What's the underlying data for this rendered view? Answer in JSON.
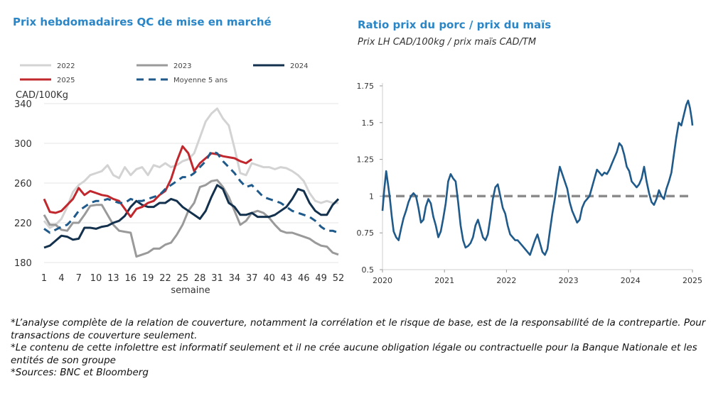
{
  "left_chart": {
    "title": "Prix hebdomadaires QC de mise en marché"
  },
  "right_chart": {
    "title": "Ratio prix du porc / prix du maïs",
    "subtitle": "Prix LH CAD/100kg / prix maïs CAD/TM"
  },
  "footnotes": [
    "*L’analyse complète de la relation de couverture, notamment la corrélation et le risque de base, est de la responsabilité de la contrepartie. Pour transactions de couverture seulement.",
    "*Le contenu de cette infolettre est informatif seulement et il ne crée aucune obligation légale ou contractuelle pour la Banque Nationale et les entités de son groupe",
    "*Sources: BNC et Bloomberg"
  ],
  "chart_data": [
    {
      "type": "line",
      "title": "Prix hebdomadaires QC de mise en marché",
      "xlabel": "semaine",
      "ylabel": "CAD/100Kg",
      "ylim": [
        180,
        340
      ],
      "xlim": [
        1,
        52
      ],
      "x_ticks": [
        1,
        4,
        7,
        10,
        13,
        16,
        19,
        22,
        25,
        28,
        31,
        34,
        37,
        40,
        43,
        46,
        49,
        52
      ],
      "y_ticks": [
        180,
        220,
        260,
        300,
        340
      ],
      "grid": "horizontal",
      "legend_position": "top",
      "series": [
        {
          "name": "2022",
          "color": "#d3d3d3",
          "style": "solid",
          "x": [
            1,
            2,
            3,
            4,
            5,
            6,
            7,
            8,
            9,
            10,
            11,
            12,
            13,
            14,
            15,
            16,
            17,
            18,
            19,
            20,
            21,
            22,
            23,
            24,
            25,
            26,
            27,
            28,
            29,
            30,
            31,
            32,
            33,
            34,
            35,
            36,
            37,
            38,
            39,
            40,
            41,
            42,
            43,
            44,
            45,
            46,
            47,
            48,
            49,
            50,
            51,
            52
          ],
          "values": [
            222,
            215,
            218,
            224,
            236,
            251,
            258,
            262,
            268,
            270,
            272,
            278,
            268,
            265,
            276,
            268,
            274,
            276,
            268,
            278,
            276,
            280,
            276,
            278,
            282,
            284,
            290,
            306,
            322,
            330,
            335,
            325,
            318,
            295,
            270,
            268,
            280,
            278,
            276,
            276,
            274,
            276,
            275,
            272,
            268,
            262,
            250,
            242,
            240,
            242,
            240,
            240
          ]
        },
        {
          "name": "2023",
          "color": "#9a9a9a",
          "style": "solid",
          "x": [
            1,
            2,
            3,
            4,
            5,
            6,
            7,
            8,
            9,
            10,
            11,
            12,
            13,
            14,
            15,
            16,
            17,
            18,
            19,
            20,
            21,
            22,
            23,
            24,
            25,
            26,
            27,
            28,
            29,
            30,
            31,
            32,
            33,
            34,
            35,
            36,
            37,
            38,
            39,
            40,
            41,
            42,
            43,
            44,
            45,
            46,
            47,
            48,
            49,
            50,
            51,
            52
          ],
          "values": [
            228,
            218,
            218,
            213,
            212,
            220,
            220,
            228,
            237,
            238,
            238,
            228,
            218,
            212,
            211,
            210,
            186,
            188,
            190,
            194,
            194,
            198,
            200,
            208,
            218,
            232,
            240,
            256,
            258,
            262,
            263,
            256,
            246,
            232,
            218,
            222,
            230,
            232,
            230,
            225,
            218,
            212,
            210,
            210,
            208,
            206,
            204,
            200,
            197,
            196,
            190,
            188
          ]
        },
        {
          "name": "2024",
          "color": "#13314d",
          "style": "solid",
          "x": [
            1,
            2,
            3,
            4,
            5,
            6,
            7,
            8,
            9,
            10,
            11,
            12,
            13,
            14,
            15,
            16,
            17,
            18,
            19,
            20,
            21,
            22,
            23,
            24,
            25,
            26,
            27,
            28,
            29,
            30,
            31,
            32,
            33,
            34,
            35,
            36,
            37,
            38,
            39,
            40,
            41,
            42,
            43,
            44,
            45,
            46,
            47,
            48,
            49,
            50,
            51,
            52
          ],
          "values": [
            195,
            197,
            202,
            207,
            206,
            203,
            204,
            215,
            215,
            214,
            216,
            217,
            220,
            222,
            227,
            236,
            242,
            238,
            236,
            236,
            240,
            240,
            244,
            242,
            236,
            232,
            228,
            224,
            232,
            246,
            258,
            254,
            240,
            236,
            228,
            228,
            230,
            226,
            226,
            226,
            228,
            232,
            236,
            244,
            254,
            252,
            240,
            232,
            228,
            228,
            238,
            244
          ]
        },
        {
          "name": "2025",
          "color": "#c0282e",
          "style": "solid",
          "x": [
            1,
            2,
            3,
            4,
            5,
            6,
            7,
            8,
            9,
            10,
            11,
            12,
            13,
            14,
            15,
            16,
            17,
            18,
            19,
            20,
            21,
            22,
            23,
            24,
            25,
            26,
            27,
            28,
            29,
            30,
            31,
            32,
            33,
            34,
            35,
            36,
            37
          ],
          "values": [
            244,
            231,
            230,
            232,
            238,
            244,
            255,
            248,
            252,
            250,
            248,
            247,
            244,
            242,
            234,
            226,
            234,
            236,
            240,
            242,
            248,
            252,
            264,
            282,
            297,
            290,
            272,
            280,
            285,
            290,
            289,
            287,
            286,
            285,
            282,
            280,
            284
          ]
        },
        {
          "name": "Moyenne 5 ans",
          "color": "#1f5a8a",
          "style": "dashed",
          "x": [
            1,
            2,
            3,
            4,
            5,
            6,
            7,
            8,
            9,
            10,
            11,
            12,
            13,
            14,
            15,
            16,
            17,
            18,
            19,
            20,
            21,
            22,
            23,
            24,
            25,
            26,
            27,
            28,
            29,
            30,
            31,
            32,
            33,
            34,
            35,
            36,
            37,
            38,
            39,
            40,
            41,
            42,
            43,
            44,
            45,
            46,
            47,
            48,
            49,
            50,
            51,
            52
          ],
          "values": [
            214,
            210,
            213,
            216,
            218,
            224,
            232,
            236,
            240,
            242,
            242,
            244,
            242,
            240,
            240,
            244,
            242,
            242,
            244,
            246,
            248,
            254,
            258,
            262,
            266,
            266,
            270,
            276,
            282,
            292,
            290,
            282,
            276,
            270,
            262,
            256,
            258,
            252,
            246,
            244,
            242,
            240,
            236,
            232,
            230,
            228,
            226,
            222,
            216,
            212,
            212,
            210
          ]
        }
      ]
    },
    {
      "type": "line",
      "title": "Ratio prix du porc / prix du maïs",
      "subtitle": "Prix LH CAD/100kg / prix maïs CAD/TM",
      "ylim": [
        0.5,
        1.75
      ],
      "xlim": [
        2020.0,
        2025.0
      ],
      "x_ticks": [
        2020,
        2021,
        2022,
        2023,
        2024,
        2025
      ],
      "x_tick_labels": [
        "2020",
        "2021",
        "2022",
        "2023",
        "2024",
        "2025"
      ],
      "y_ticks": [
        0.5,
        0.75,
        1.0,
        1.25,
        1.5,
        1.75
      ],
      "y_tick_labels": [
        "0.5",
        "0.75",
        "1",
        "1.25",
        "1.5",
        "1.75"
      ],
      "grid": "none",
      "reference_line": {
        "y": 1.0,
        "color": "#8c8c8c",
        "style": "dashed"
      },
      "series": [
        {
          "name": "",
          "color": "#1f5a8a",
          "style": "solid",
          "x": [
            2020.0,
            2020.03,
            2020.06,
            2020.09,
            2020.12,
            2020.15,
            2020.18,
            2020.22,
            2020.26,
            2020.3,
            2020.34,
            2020.38,
            2020.42,
            2020.46,
            2020.5,
            2020.54,
            2020.58,
            2020.62,
            2020.66,
            2020.7,
            2020.74,
            2020.78,
            2020.82,
            2020.86,
            2020.9,
            2020.94,
            2020.98,
            2021.02,
            2021.06,
            2021.1,
            2021.14,
            2021.18,
            2021.22,
            2021.26,
            2021.3,
            2021.34,
            2021.38,
            2021.42,
            2021.46,
            2021.5,
            2021.54,
            2021.58,
            2021.62,
            2021.66,
            2021.7,
            2021.74,
            2021.78,
            2021.82,
            2021.86,
            2021.9,
            2021.94,
            2021.98,
            2022.02,
            2022.06,
            2022.1,
            2022.14,
            2022.18,
            2022.22,
            2022.26,
            2022.3,
            2022.34,
            2022.38,
            2022.42,
            2022.46,
            2022.5,
            2022.54,
            2022.58,
            2022.62,
            2022.66,
            2022.7,
            2022.74,
            2022.78,
            2022.82,
            2022.86,
            2022.9,
            2022.94,
            2022.98,
            2023.02,
            2023.06,
            2023.1,
            2023.14,
            2023.18,
            2023.22,
            2023.26,
            2023.3,
            2023.34,
            2023.38,
            2023.42,
            2023.46,
            2023.5,
            2023.54,
            2023.58,
            2023.62,
            2023.66,
            2023.7,
            2023.74,
            2023.78,
            2023.82,
            2023.86,
            2023.9,
            2023.94,
            2023.98,
            2024.02,
            2024.06,
            2024.1,
            2024.14,
            2024.18,
            2024.22,
            2024.26,
            2024.3,
            2024.34,
            2024.38,
            2024.42,
            2024.46,
            2024.5,
            2024.54,
            2024.58,
            2024.62,
            2024.66,
            2024.7,
            2024.74,
            2024.78,
            2024.82,
            2024.86,
            2024.9,
            2024.93,
            2024.96,
            2024.99,
            2025.0
          ],
          "values": [
            0.9,
            1.05,
            1.17,
            1.08,
            0.98,
            0.86,
            0.76,
            0.72,
            0.7,
            0.78,
            0.85,
            0.9,
            0.96,
            1.0,
            1.02,
            1.0,
            0.92,
            0.82,
            0.84,
            0.93,
            0.98,
            0.95,
            0.86,
            0.8,
            0.72,
            0.76,
            0.85,
            0.95,
            1.1,
            1.15,
            1.12,
            1.1,
            0.96,
            0.8,
            0.7,
            0.65,
            0.66,
            0.68,
            0.72,
            0.8,
            0.84,
            0.78,
            0.72,
            0.7,
            0.74,
            0.85,
            0.98,
            1.06,
            1.08,
            1.0,
            0.92,
            0.88,
            0.8,
            0.74,
            0.72,
            0.7,
            0.7,
            0.68,
            0.66,
            0.64,
            0.62,
            0.6,
            0.65,
            0.7,
            0.74,
            0.68,
            0.62,
            0.6,
            0.64,
            0.76,
            0.88,
            0.98,
            1.1,
            1.2,
            1.15,
            1.1,
            1.05,
            0.96,
            0.9,
            0.86,
            0.82,
            0.84,
            0.92,
            0.96,
            0.98,
            1.0,
            1.06,
            1.12,
            1.18,
            1.16,
            1.14,
            1.16,
            1.15,
            1.18,
            1.22,
            1.26,
            1.3,
            1.36,
            1.34,
            1.28,
            1.2,
            1.17,
            1.1,
            1.08,
            1.06,
            1.08,
            1.12,
            1.2,
            1.1,
            1.02,
            0.96,
            0.94,
            0.98,
            1.04,
            1.0,
            0.98,
            1.05,
            1.1,
            1.16,
            1.28,
            1.4,
            1.5,
            1.48,
            1.55,
            1.62,
            1.65,
            1.6,
            1.52,
            1.48
          ]
        }
      ]
    }
  ]
}
